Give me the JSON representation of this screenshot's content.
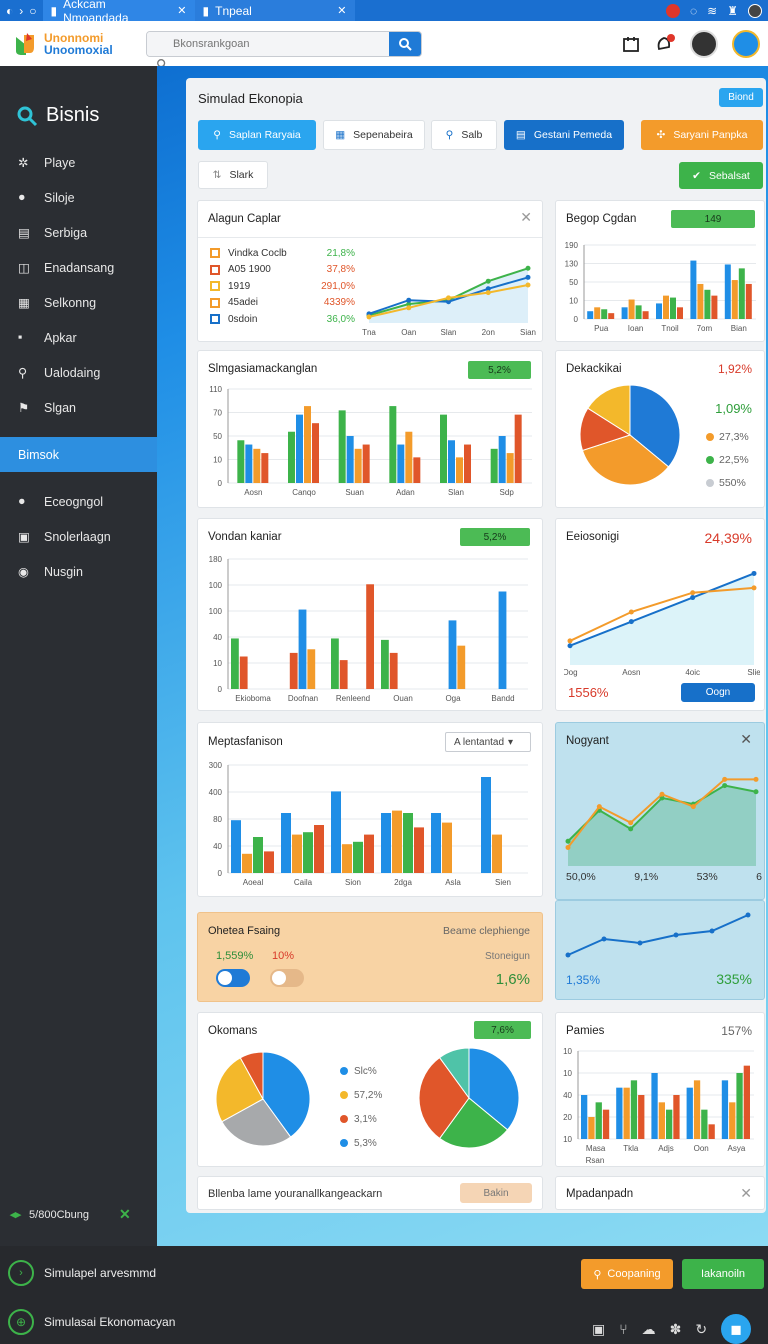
{
  "browser": {
    "tabs": [
      {
        "label": "Ackcam Nmoandada"
      },
      {
        "label": "Tnpeal"
      }
    ]
  },
  "header": {
    "logo_line1": "Unonnomi",
    "logo_line2": "Unoomoxial",
    "search_placeholder": "Bkonsrankgoan"
  },
  "sidebar": {
    "brand": "Bisnis",
    "items": [
      {
        "label": "Playe",
        "icon": "gear-icon"
      },
      {
        "label": "Siloje",
        "icon": "user-icon"
      },
      {
        "label": "Serbiga",
        "icon": "calendar-icon"
      },
      {
        "label": "Enadansang",
        "icon": "grid-icon"
      },
      {
        "label": "Selkonng",
        "icon": "table-icon"
      },
      {
        "label": "Apkar",
        "icon": "square-icon"
      },
      {
        "label": "Ualodaing",
        "icon": "search-icon"
      },
      {
        "label": "Slgan",
        "icon": "pin-icon"
      }
    ],
    "active_item": "Bimsok",
    "items2": [
      {
        "label": "Eceogngol",
        "icon": "user-icon"
      },
      {
        "label": "Snolerlaagn",
        "icon": "table-icon"
      },
      {
        "label": "Nusgin",
        "icon": "record-icon"
      }
    ],
    "bottom_label": "5/800Cbung"
  },
  "panel": {
    "title": "Simulad Ekonopia",
    "top_button": "Biond",
    "toolbar": [
      {
        "label": "Saplan Raryaia",
        "icon": "search-icon"
      },
      {
        "label": "Sepenabeira",
        "icon": "grid-icon"
      },
      {
        "label": "Salb",
        "icon": "search-icon"
      },
      {
        "label": "Gestani Pemeda",
        "icon": "document-icon"
      },
      {
        "label": "Saryani Panpka",
        "icon": "settings-icon"
      }
    ],
    "sort_button": "Slark",
    "apply_button": "Sebalsat"
  },
  "cards": {
    "c1": {
      "title": "Alagun Caplar",
      "legend": [
        {
          "label": "Vindka Coclb",
          "value": "21,8%",
          "color": "#f39b2b"
        },
        {
          "label": "A05 1900",
          "value": "37,8%",
          "color": "#e0562a"
        },
        {
          "label": "1919",
          "value": "291,0%",
          "color": "#f3b82b"
        },
        {
          "label": "45adei",
          "value": "4339%",
          "color": "#f39b2b"
        },
        {
          "label": "0sdoin",
          "value": "36,0%",
          "color": "#1770c9"
        }
      ],
      "value_colors": [
        "#3db34a",
        "#e0562a",
        "#e0562a",
        "#e0562a",
        "#3db34a"
      ],
      "x_labels": [
        "Tna",
        "Oan",
        "Slan",
        "2on",
        "Sian"
      ]
    },
    "c2": {
      "title": "Begop Cgdan",
      "badge": "149",
      "y_labels": [
        "190",
        "130",
        "50",
        "10",
        "0"
      ],
      "x_labels": [
        "Pua",
        "Ioan",
        "Tnoil",
        "7om",
        "Bian"
      ]
    },
    "c3": {
      "title": "Slmgasiamackanglan",
      "badge": "5,2%",
      "y_labels": [
        "110",
        "70",
        "50",
        "10",
        "0"
      ],
      "x_labels": [
        "Aosn",
        "Canqo",
        "Suan",
        "Adan",
        "Slan",
        "Sdp"
      ]
    },
    "c4": {
      "title": "Dekackikai",
      "value": "1,92%",
      "sub": "1,09%",
      "legend": [
        {
          "label": "27,3%",
          "color": "#f39b2b"
        },
        {
          "label": "22,5%",
          "color": "#3db34a"
        },
        {
          "label": "550%",
          "color": "#c8ccd2"
        }
      ]
    },
    "c5": {
      "title": "Vondan kaniar",
      "badge": "5,2%",
      "y_labels": [
        "180",
        "100",
        "100",
        "40",
        "10",
        "0"
      ],
      "x_labels": [
        "Ekioboma",
        "Doofnan",
        "Renleend",
        "Ouan",
        "Oga",
        "Bandd"
      ]
    },
    "c6": {
      "title": "Eeiosonigi",
      "value": "24,39%",
      "footer_value": "1556%",
      "footer_button": "Oogn",
      "x_labels": [
        "Oog",
        "Aosn",
        "4oic",
        "Slie"
      ]
    },
    "c7": {
      "title": "Meptasfanison",
      "dropdown": "A lentantad",
      "y_labels": [
        "300",
        "400",
        "80",
        "40",
        "0"
      ],
      "x_labels": [
        "Aoeal",
        "Caila",
        "Sion",
        "2dga",
        "Asla",
        "Sien"
      ]
    },
    "c8": {
      "title": "Nogyant",
      "stats": [
        "50,0%",
        "9,1%",
        "53%",
        "6"
      ]
    },
    "c9": {
      "title": "Ohetea Fsaing",
      "right_title": "Beame clephienge",
      "v1": "1,559%",
      "v2": "10%",
      "right_label": "Stoneigun",
      "right_value": "1,6%"
    },
    "c10": {
      "left": "1,35%",
      "right": "335%"
    },
    "c11": {
      "title": "Okomans",
      "badge": "7,6%",
      "legend": [
        {
          "label": "Slc%",
          "color": "#1f8ee6"
        },
        {
          "label": "57,2%",
          "color": "#f3b82b"
        },
        {
          "label": "3,1%",
          "color": "#e0562a"
        },
        {
          "label": "5,3%",
          "color": "#1f8ee6"
        }
      ]
    },
    "c12": {
      "title": "Pamies",
      "value": "157%",
      "y_labels": [
        "10",
        "10",
        "40",
        "20",
        "10"
      ],
      "x_labels": [
        "Masa",
        "Tkla",
        "Adjs",
        "Oon",
        "Asya"
      ],
      "x_sub": "Rsan"
    },
    "c13": {
      "text": "Bllenba lame youranallkangeackarn",
      "button": "Bakin"
    },
    "c14": {
      "title": "Mpadanpadn"
    }
  },
  "bottom": {
    "row1": "Simulapel arvesmmd",
    "row2": "Simulasai Ekonomacyan",
    "btn_orange": "Coopaning",
    "btn_green": "Iakanoiln"
  },
  "chart_data": [
    {
      "type": "line",
      "title": "Alagun Caplar",
      "categories": [
        "Tna",
        "Oan",
        "Slan",
        "2on",
        "Sian"
      ],
      "series": [
        {
          "values": [
            10,
            25,
            30,
            55,
            72
          ],
          "color": "#3db34a"
        },
        {
          "values": [
            12,
            30,
            28,
            45,
            60
          ],
          "color": "#1770c9"
        },
        {
          "values": [
            8,
            20,
            33,
            40,
            50
          ],
          "color": "#f3b82b"
        }
      ],
      "ylim": [
        0,
        100
      ]
    },
    {
      "type": "bar",
      "title": "Begop Cgdan",
      "categories": [
        "Pua",
        "Ioan",
        "Tnoil",
        "7om",
        "Bian"
      ],
      "series": [
        {
          "values": [
            20,
            30,
            40,
            150,
            140
          ],
          "color": "#1f8ee6"
        },
        {
          "values": [
            30,
            50,
            60,
            90,
            100
          ],
          "color": "#f39b2b"
        },
        {
          "values": [
            25,
            35,
            55,
            75,
            130
          ],
          "color": "#3db34a"
        },
        {
          "values": [
            15,
            20,
            30,
            60,
            90
          ],
          "color": "#e0562a"
        }
      ],
      "ylim": [
        0,
        190
      ]
    },
    {
      "type": "bar",
      "title": "Slmgasiamackanglan",
      "categories": [
        "Aosn",
        "Canqo",
        "Suan",
        "Adan",
        "Slan",
        "Sdp"
      ],
      "series": [
        {
          "values": [
            50,
            60,
            85,
            90,
            80,
            40
          ],
          "color": "#3db34a"
        },
        {
          "values": [
            45,
            80,
            55,
            45,
            50,
            55
          ],
          "color": "#1f8ee6"
        },
        {
          "values": [
            40,
            90,
            40,
            60,
            30,
            35
          ],
          "color": "#f39b2b"
        },
        {
          "values": [
            35,
            70,
            45,
            30,
            45,
            80
          ],
          "color": "#e0562a"
        }
      ],
      "ylim": [
        0,
        110
      ]
    },
    {
      "type": "pie",
      "title": "Dekackikai",
      "categories": [
        "blue",
        "orange",
        "red",
        "yellow"
      ],
      "values": [
        36,
        34,
        14,
        16
      ]
    },
    {
      "type": "bar",
      "title": "Vondan kaniar",
      "categories": [
        "Ekioboma",
        "Doofnan",
        "Renleend",
        "Ouan",
        "Oga",
        "Bandd"
      ],
      "series": [
        {
          "values": [
            70,
            0,
            70,
            68,
            0,
            0
          ],
          "color": "#3db34a"
        },
        {
          "values": [
            45,
            50,
            40,
            50,
            0,
            0
          ],
          "color": "#e0562a"
        },
        {
          "values": [
            0,
            110,
            0,
            0,
            95,
            135
          ],
          "color": "#1f8ee6"
        },
        {
          "values": [
            0,
            55,
            0,
            0,
            60,
            0
          ],
          "color": "#f39b2b"
        },
        {
          "values": [
            0,
            0,
            145,
            0,
            0,
            0
          ],
          "color": "#e0562a"
        }
      ],
      "ylim": [
        0,
        180
      ]
    },
    {
      "type": "line",
      "title": "Eeiosonigi",
      "categories": [
        "Oog",
        "Aosn",
        "4oic",
        "Slie"
      ],
      "series": [
        {
          "values": [
            20,
            45,
            70,
            95
          ],
          "color": "#1770c9"
        },
        {
          "values": [
            25,
            55,
            75,
            80
          ],
          "color": "#f39b2b"
        }
      ],
      "ylim": [
        0,
        110
      ]
    },
    {
      "type": "bar",
      "title": "Meptasfanison",
      "categories": [
        "Aoeal",
        "Caila",
        "Sion",
        "2dga",
        "Asla",
        "Sien"
      ],
      "series": [
        {
          "values": [
            220,
            250,
            340,
            250,
            250,
            400
          ],
          "color": "#1f8ee6"
        },
        {
          "values": [
            80,
            160,
            120,
            260,
            210,
            160
          ],
          "color": "#f39b2b"
        },
        {
          "values": [
            150,
            170,
            130,
            250,
            0,
            0
          ],
          "color": "#3db34a"
        },
        {
          "values": [
            90,
            200,
            160,
            190,
            0,
            0
          ],
          "color": "#e0562a"
        }
      ],
      "ylim": [
        0,
        450
      ]
    },
    {
      "type": "area",
      "title": "Nogyant",
      "categories": [
        "1",
        "2",
        "3",
        "4",
        "5",
        "6",
        "7"
      ],
      "series": [
        {
          "values": [
            20,
            45,
            30,
            55,
            50,
            65,
            60
          ],
          "color": "#3db34a"
        },
        {
          "values": [
            15,
            48,
            35,
            58,
            48,
            70,
            70
          ],
          "color": "#f39b2b"
        }
      ],
      "ylim": [
        0,
        80
      ]
    },
    {
      "type": "line",
      "categories": [
        "1",
        "2",
        "3",
        "4",
        "5",
        "6"
      ],
      "series": [
        {
          "values": [
            10,
            30,
            25,
            35,
            40,
            60
          ],
          "color": "#1770c9"
        }
      ],
      "ylim": [
        0,
        70
      ]
    },
    {
      "type": "pie",
      "title": "Okomans",
      "values": [
        40,
        27,
        25,
        8
      ]
    },
    {
      "type": "pie",
      "values": [
        36,
        24,
        30,
        10
      ]
    },
    {
      "type": "bar",
      "title": "Pamies",
      "categories": [
        "Masa",
        "Tkla",
        "Adjs",
        "Oon",
        "Asya"
      ],
      "series": [
        {
          "values": [
            6,
            7,
            9,
            7,
            8
          ],
          "color": "#1f8ee6"
        },
        {
          "values": [
            3,
            7,
            5,
            8,
            5
          ],
          "color": "#f39b2b"
        },
        {
          "values": [
            5,
            8,
            4,
            4,
            9
          ],
          "color": "#3db34a"
        },
        {
          "values": [
            4,
            6,
            6,
            2,
            10
          ],
          "color": "#e0562a"
        }
      ],
      "ylim": [
        0,
        12
      ]
    }
  ]
}
